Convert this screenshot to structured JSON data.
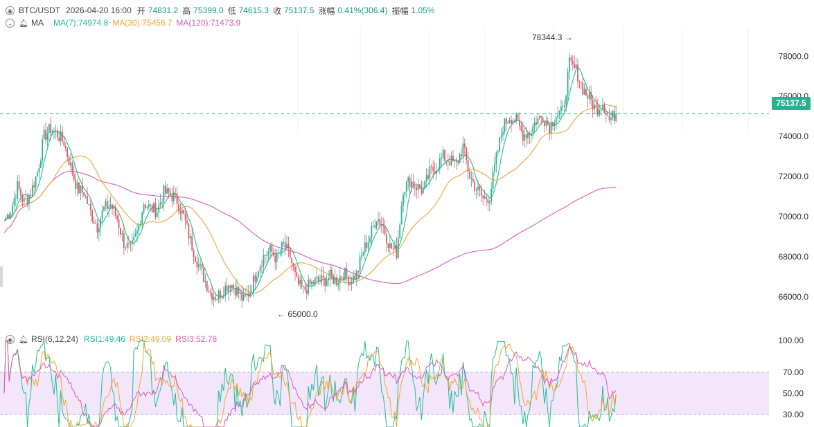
{
  "header": {
    "pair": "BTC/USDT",
    "datetime": "2026-04-20 16:00",
    "open_label": "开",
    "open": "74831.2",
    "high_label": "高",
    "high": "75399.0",
    "low_label": "低",
    "low": "74615.3",
    "close_label": "收",
    "close": "75137.5",
    "change_label": "涨幅",
    "change": "0.41%(306.4)",
    "amp_label": "振幅",
    "amp": "1.05%"
  },
  "ma": {
    "label": "MA",
    "ma7": "MA(7):74974.8",
    "ma30": "MA(30):75456.7",
    "ma120": "MA(120):71473.9"
  },
  "rsi": {
    "label": "RSI(6,12,24)",
    "rsi1": "RSI1:49.46",
    "rsi2": "RSI2:49.09",
    "rsi3": "RSI3:52.78"
  },
  "colors": {
    "up": "#2eae91",
    "down": "#e35563",
    "ma7": "#1fbf8f",
    "ma30": "#f0a53a",
    "ma120": "#d65cc0",
    "rsi_band": "#f3e6fb"
  },
  "chart_data": [
    {
      "type": "candlestick",
      "title": "BTC/USDT",
      "y_ticks": [
        "78000.0",
        "76000.0",
        "74000.0",
        "72000.0",
        "70000.0",
        "68000.0",
        "66000.0"
      ],
      "ylim": [
        64300,
        79600
      ],
      "last_price": "75137.5",
      "max_annotation": "78344.3",
      "min_annotation": "65000.0",
      "anchors": [
        [
          0,
          69800
        ],
        [
          4,
          70300
        ],
        [
          8,
          71500
        ],
        [
          12,
          70700
        ],
        [
          16,
          71200
        ],
        [
          20,
          72200
        ],
        [
          24,
          74000
        ],
        [
          28,
          74400
        ],
        [
          32,
          74100
        ],
        [
          36,
          73700
        ],
        [
          40,
          72500
        ],
        [
          44,
          71400
        ],
        [
          48,
          71200
        ],
        [
          52,
          70200
        ],
        [
          56,
          69500
        ],
        [
          60,
          70400
        ],
        [
          64,
          70600
        ],
        [
          68,
          69900
        ],
        [
          72,
          68700
        ],
        [
          76,
          68300
        ],
        [
          80,
          69200
        ],
        [
          84,
          70700
        ],
        [
          88,
          70400
        ],
        [
          92,
          70300
        ],
        [
          96,
          71200
        ],
        [
          100,
          71100
        ],
        [
          104,
          70800
        ],
        [
          108,
          70000
        ],
        [
          112,
          68800
        ],
        [
          116,
          67800
        ],
        [
          120,
          67000
        ],
        [
          124,
          66200
        ],
        [
          128,
          66000
        ],
        [
          132,
          66400
        ],
        [
          136,
          66700
        ],
        [
          140,
          66300
        ],
        [
          144,
          65800
        ],
        [
          148,
          66300
        ],
        [
          152,
          67300
        ],
        [
          156,
          68000
        ],
        [
          160,
          68300
        ],
        [
          164,
          67900
        ],
        [
          168,
          68600
        ],
        [
          172,
          68000
        ],
        [
          176,
          66700
        ],
        [
          180,
          66300
        ],
        [
          184,
          66600
        ],
        [
          188,
          66800
        ],
        [
          192,
          66800
        ],
        [
          196,
          67000
        ],
        [
          200,
          66800
        ],
        [
          204,
          67200
        ],
        [
          208,
          66800
        ],
        [
          212,
          67100
        ],
        [
          216,
          68300
        ],
        [
          220,
          69000
        ],
        [
          224,
          70000
        ],
        [
          228,
          69500
        ],
        [
          232,
          68500
        ],
        [
          236,
          68200
        ],
        [
          240,
          71400
        ],
        [
          244,
          71800
        ],
        [
          248,
          71500
        ],
        [
          252,
          71300
        ],
        [
          256,
          72200
        ],
        [
          260,
          72500
        ],
        [
          264,
          73000
        ],
        [
          268,
          72800
        ],
        [
          272,
          72600
        ],
        [
          276,
          73500
        ],
        [
          280,
          72000
        ],
        [
          284,
          71400
        ],
        [
          288,
          70900
        ],
        [
          292,
          71000
        ],
        [
          296,
          72900
        ],
        [
          300,
          74500
        ],
        [
          304,
          75000
        ],
        [
          308,
          74800
        ],
        [
          312,
          74100
        ],
        [
          316,
          74200
        ],
        [
          320,
          74800
        ],
        [
          324,
          75000
        ],
        [
          328,
          74500
        ],
        [
          332,
          75100
        ],
        [
          336,
          75200
        ],
        [
          340,
          77600
        ],
        [
          344,
          77300
        ],
        [
          348,
          76400
        ],
        [
          352,
          75900
        ],
        [
          356,
          75300
        ],
        [
          360,
          75700
        ],
        [
          364,
          74800
        ],
        [
          368,
          75137.5
        ]
      ],
      "ma_series": {
        "ma7_last": 74974.8,
        "ma30_last": 75456.7,
        "ma120_last": 71473.9
      }
    },
    {
      "type": "line",
      "title": "RSI(6,12,24)",
      "y_ticks": [
        "100.00",
        "70.00",
        "50.00",
        "30.00"
      ],
      "band": [
        30,
        70
      ],
      "series": [
        {
          "name": "RSI1",
          "last": 49.46
        },
        {
          "name": "RSI2",
          "last": 49.09
        },
        {
          "name": "RSI3",
          "last": 52.78
        }
      ]
    }
  ]
}
